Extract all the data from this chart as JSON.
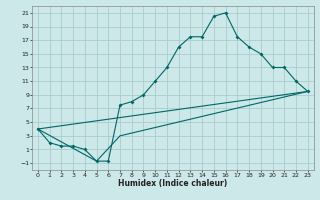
{
  "xlabel": "Humidex (Indice chaleur)",
  "bg_color": "#cce8e8",
  "grid_color": "#aacccc",
  "line_color": "#006666",
  "line1_x": [
    0,
    1,
    2,
    3,
    4,
    5,
    6,
    7,
    8,
    9,
    10,
    11,
    12,
    13,
    14,
    15,
    16,
    17,
    18,
    19,
    20,
    21,
    22,
    23
  ],
  "line1_y": [
    4,
    2,
    1.5,
    1.5,
    1,
    -0.7,
    -0.7,
    7.5,
    8,
    9,
    11,
    13,
    16,
    17.5,
    17.5,
    20.5,
    21,
    17.5,
    16,
    15,
    13,
    13,
    11,
    9.5
  ],
  "line2_x": [
    0,
    23
  ],
  "line2_y": [
    4,
    9.5
  ],
  "line3_x": [
    0,
    5,
    7,
    23
  ],
  "line3_y": [
    4,
    -0.7,
    3,
    9.5
  ],
  "xlim": [
    -0.5,
    23.5
  ],
  "ylim": [
    -2,
    22
  ],
  "xticks": [
    0,
    1,
    2,
    3,
    4,
    5,
    6,
    7,
    8,
    9,
    10,
    11,
    12,
    13,
    14,
    15,
    16,
    17,
    18,
    19,
    20,
    21,
    22,
    23
  ],
  "yticks": [
    -1,
    1,
    3,
    5,
    7,
    9,
    11,
    13,
    15,
    17,
    19,
    21
  ],
  "xlabel_fontsize": 5.5,
  "tick_fontsize": 4.5,
  "lw": 0.8,
  "ms": 2.0
}
